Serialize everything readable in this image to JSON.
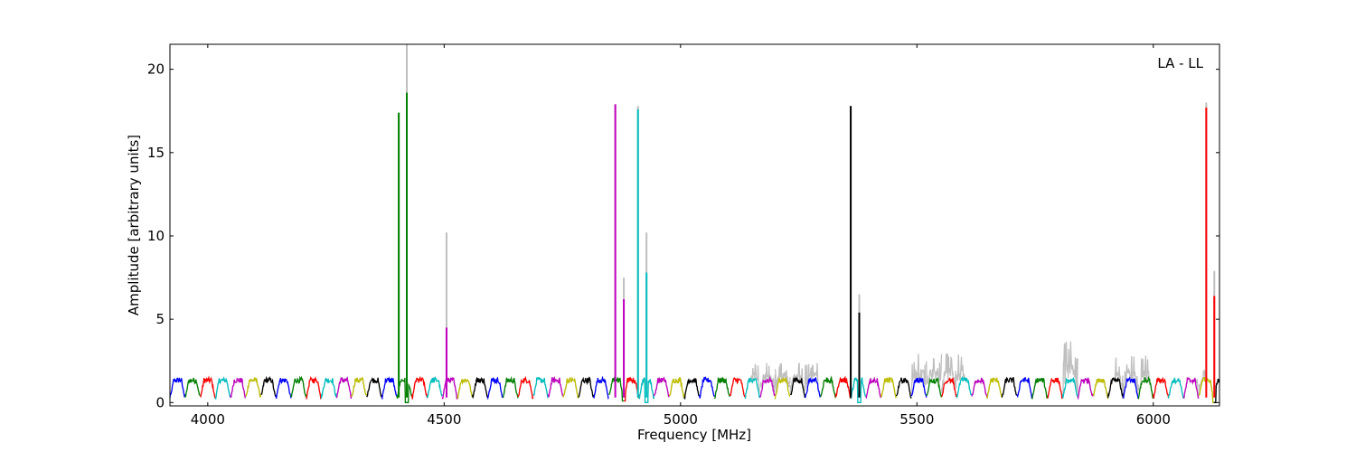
{
  "chart_data": {
    "type": "line",
    "title": "",
    "annotation": "LA - LL",
    "xlabel": "Frequency [MHz]",
    "ylabel": "Amplitude [arbitrary units]",
    "xlim": [
      3920,
      6140
    ],
    "ylim": [
      -0.2,
      21.5
    ],
    "xticks": [
      4000,
      4500,
      5000,
      5500,
      6000
    ],
    "yticks": [
      0,
      5,
      10,
      15,
      20
    ],
    "grid": false,
    "band_width_mhz": 32,
    "band_color_cycle": [
      "#0000ff",
      "#008000",
      "#ff0000",
      "#00bfbf",
      "#bf00bf",
      "#bfbf00",
      "#000000"
    ],
    "raw_color": "#bfbfbf",
    "spikes": [
      {
        "x": 4404,
        "value": 17.4,
        "raw": 17.4,
        "color": "#008000"
      },
      {
        "x": 4421,
        "value": 18.6,
        "raw": 21.5,
        "color": "#008000"
      },
      {
        "x": 4505,
        "value": 4.5,
        "raw": 10.2,
        "color": "#bf00bf"
      },
      {
        "x": 4862,
        "value": 17.9,
        "raw": 17.9,
        "color": "#bf00bf"
      },
      {
        "x": 4880,
        "value": 6.2,
        "raw": 7.5,
        "color": "#bf00bf"
      },
      {
        "x": 4910,
        "value": 17.6,
        "raw": 17.8,
        "color": "#00bfbf"
      },
      {
        "x": 4928,
        "value": 7.8,
        "raw": 10.2,
        "color": "#00bfbf"
      },
      {
        "x": 5360,
        "value": 17.8,
        "raw": 17.8,
        "color": "#000000"
      },
      {
        "x": 5378,
        "value": 5.4,
        "raw": 6.5,
        "color": "#000000"
      },
      {
        "x": 6112,
        "value": 17.7,
        "raw": 18.0,
        "color": "#ff0000"
      },
      {
        "x": 6129,
        "value": 6.4,
        "raw": 7.9,
        "color": "#ff0000"
      }
    ],
    "dips": [
      {
        "x": 4421,
        "value": 0.0
      },
      {
        "x": 4880,
        "value": 0.1
      },
      {
        "x": 4928,
        "value": 0.0
      },
      {
        "x": 5378,
        "value": 0.0
      },
      {
        "x": 6129,
        "value": 0.0
      }
    ],
    "raw_noise_regions": [
      {
        "x_from": 5150,
        "x_to": 5290,
        "max": 2.4
      },
      {
        "x_from": 5490,
        "x_to": 5600,
        "max": 3.0
      },
      {
        "x_from": 5810,
        "x_to": 5840,
        "max": 3.7
      },
      {
        "x_from": 5920,
        "x_to": 5990,
        "max": 2.9
      },
      {
        "x_from": 6090,
        "x_to": 6110,
        "max": 2.7
      }
    ],
    "baseline": {
      "min": 0.2,
      "max": 1.5
    }
  }
}
